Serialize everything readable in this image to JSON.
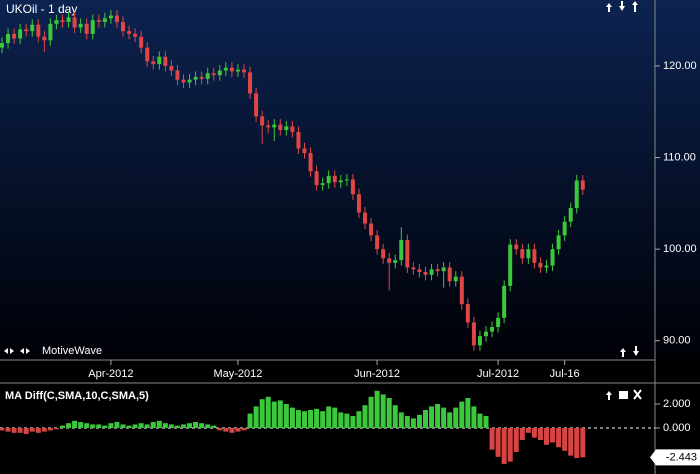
{
  "chart_data": [
    {
      "type": "candlestick",
      "title": "UKOil - 1 day",
      "watermark": "MotiveWave",
      "up_color": "#3cc83c",
      "down_color": "#e04646",
      "categories": [
        null,
        null,
        null,
        null,
        null,
        null,
        null,
        null,
        null,
        null,
        null,
        null,
        null,
        null,
        null,
        null,
        null,
        null,
        "Apr-2012",
        null,
        null,
        null,
        null,
        null,
        null,
        null,
        null,
        null,
        null,
        null,
        null,
        null,
        null,
        null,
        null,
        null,
        null,
        null,
        null,
        "May-2012",
        null,
        null,
        null,
        null,
        null,
        null,
        null,
        null,
        null,
        null,
        null,
        null,
        null,
        null,
        null,
        null,
        null,
        null,
        null,
        null,
        null,
        null,
        "Jun-2012",
        null,
        null,
        null,
        null,
        null,
        null,
        null,
        null,
        null,
        null,
        null,
        null,
        null,
        null,
        null,
        null,
        null,
        null,
        null,
        "Jul-2012",
        null,
        null,
        null,
        null,
        null,
        null,
        null,
        null,
        null,
        null,
        "Jul-16",
        null,
        null,
        null
      ],
      "open": [
        122.0,
        122.5,
        123.5,
        123,
        124,
        123.8,
        124.5,
        123.2,
        122.8,
        124.6,
        125,
        124.8,
        125.3,
        124.2,
        124.6,
        123.5,
        125,
        124.8,
        125.2,
        125.5,
        124.8,
        123.8,
        123.5,
        123.2,
        122,
        120.5,
        120.2,
        121,
        120,
        119.5,
        118.5,
        118.2,
        118.5,
        118.8,
        118.6,
        119.2,
        119,
        119.5,
        119.8,
        119.4,
        119.6,
        119.3,
        117,
        114.5,
        113.5,
        113.3,
        113.6,
        113,
        113.4,
        112.8,
        111,
        110.5,
        108.5,
        107,
        107.2,
        108,
        107.3,
        107.5,
        107.6,
        106,
        104,
        102.8,
        101.5,
        100,
        99,
        98.5,
        98.8,
        101,
        98,
        97.8,
        97.5,
        97.2,
        97.8,
        97.6,
        98,
        96.5,
        97,
        94,
        92,
        89.5,
        90.5,
        91,
        91.5,
        92.5,
        96,
        100.5,
        100,
        99,
        100,
        98.5,
        98,
        98.2,
        100,
        101.5,
        103,
        104.5,
        107.5
      ],
      "high": [
        123.1,
        124.1,
        124.1,
        124.6,
        124.6,
        125.1,
        125.1,
        123.8,
        125.2,
        125.6,
        125.6,
        125.9,
        125.9,
        125.2,
        125.2,
        125.6,
        125.6,
        125.8,
        126.1,
        126.1,
        125.4,
        124.4,
        124.1,
        123.8,
        122.6,
        121.1,
        121.6,
        121.6,
        120.6,
        120.1,
        119.1,
        119.1,
        119.4,
        119.4,
        119.8,
        119.8,
        120.1,
        120.4,
        120.4,
        120.2,
        120.2,
        119.9,
        117.6,
        115.1,
        114.1,
        114.2,
        114.2,
        114,
        114,
        113.4,
        111.6,
        111.1,
        109.1,
        107.8,
        108.6,
        108.6,
        108.1,
        108.2,
        108.2,
        106.6,
        104.6,
        103.4,
        102.1,
        100.6,
        99.6,
        99.4,
        102.4,
        101.6,
        98.6,
        98.4,
        98.1,
        98.4,
        98.4,
        98.6,
        98.6,
        97.6,
        97.6,
        94.6,
        92.6,
        91.1,
        91.6,
        92.1,
        93.1,
        96.6,
        101.1,
        101.1,
        100.6,
        100.6,
        100.6,
        99.1,
        98.8,
        100.6,
        102.1,
        103.6,
        105.1,
        108.1,
        108.1
      ],
      "low": [
        121.4,
        121.9,
        122.4,
        122.4,
        123.2,
        123.2,
        122.6,
        121.5,
        122.2,
        124,
        124.2,
        124.2,
        123.6,
        123.6,
        122.9,
        122.9,
        124.2,
        124.2,
        124.6,
        124.2,
        123.2,
        122.9,
        122.6,
        121.4,
        119.9,
        119.6,
        119.6,
        119.4,
        118.9,
        117.9,
        117.6,
        117.6,
        117.9,
        118,
        118,
        118.4,
        118.4,
        118.9,
        118.8,
        118.8,
        118.7,
        116.4,
        113.9,
        111.5,
        112.7,
        111.8,
        112.4,
        112.4,
        112.2,
        110.4,
        109.9,
        107.9,
        106.4,
        106.4,
        106.6,
        106.7,
        106.7,
        106.9,
        105.4,
        103.4,
        102.2,
        100.9,
        99.4,
        98.4,
        95.5,
        97.9,
        98.2,
        97.4,
        97.2,
        96.9,
        96.6,
        96.6,
        97,
        95.8,
        95.9,
        95.9,
        93.4,
        91.4,
        88.9,
        88.9,
        89.9,
        90.4,
        90.9,
        91.9,
        95.4,
        99.4,
        98.4,
        98.4,
        97.9,
        97.4,
        97.4,
        97.6,
        99.4,
        100.9,
        102.4,
        103.9,
        105.9
      ],
      "close": [
        122.5,
        123.5,
        123,
        124,
        123.8,
        124.5,
        123.2,
        122.8,
        124.6,
        125,
        124.8,
        125.3,
        124.2,
        124.6,
        123.5,
        125,
        124.8,
        125.2,
        125.5,
        124.8,
        123.8,
        123.5,
        123.2,
        122,
        120.5,
        120.2,
        121,
        120,
        119.5,
        118.5,
        118.2,
        118.5,
        118.8,
        118.6,
        119.2,
        119,
        119.5,
        119.8,
        119.4,
        119.6,
        119.3,
        117,
        114.5,
        113.5,
        113.3,
        113.6,
        113,
        113.4,
        112.8,
        111,
        110.5,
        108.5,
        107,
        107.2,
        108,
        107.3,
        107.5,
        107.6,
        106,
        104,
        102.8,
        101.5,
        100,
        99,
        98.5,
        98.8,
        101,
        98,
        97.8,
        97.5,
        97.2,
        97.8,
        97.6,
        98,
        96.5,
        97,
        94,
        92,
        89.5,
        90.5,
        91,
        91.5,
        92.5,
        96,
        100.5,
        100,
        99,
        100,
        98.5,
        98,
        98.2,
        100,
        101.5,
        103,
        104.5,
        107.5,
        106.5
      ],
      "ylim": [
        87.9,
        127.2
      ],
      "yticks": [
        {
          "value": 90,
          "label": "90.00"
        },
        {
          "value": 100,
          "label": "100.00"
        },
        {
          "value": 110,
          "label": "110.00"
        },
        {
          "value": 120,
          "label": "120.00"
        }
      ]
    },
    {
      "type": "bar",
      "title": "MA Diff(C,SMA,10,C,SMA,5)",
      "up_color": "#3cc83c",
      "down_color": "#d84444",
      "values": [
        -0.2,
        -0.3,
        -0.4,
        -0.4,
        -0.5,
        -0.3,
        -0.4,
        -0.3,
        -0.2,
        -0.1,
        0.2,
        0.4,
        0.6,
        0.5,
        0.4,
        0.3,
        0.3,
        0.2,
        0.4,
        0.5,
        0.3,
        0.2,
        0.3,
        0.4,
        0.3,
        0.5,
        0.6,
        0.4,
        0.3,
        0.2,
        0.3,
        0.4,
        0.5,
        0.4,
        0.3,
        0.2,
        -0.2,
        -0.3,
        -0.4,
        -0.3,
        -0.2,
        1.2,
        1.8,
        2.4,
        2.6,
        2.2,
        2.3,
        2.0,
        1.7,
        1.5,
        1.4,
        1.5,
        1.6,
        1.4,
        1.8,
        1.7,
        1.3,
        1.2,
        1.0,
        1.4,
        1.9,
        2.6,
        3.1,
        2.8,
        2.5,
        1.9,
        1.3,
        1.0,
        0.8,
        1.1,
        1.5,
        1.8,
        2.0,
        1.7,
        1.3,
        1.7,
        2.2,
        2.5,
        1.8,
        1.2,
        1.0,
        -1.8,
        -2.4,
        -3.0,
        -2.8,
        -2.0,
        -1.0,
        -0.4,
        -0.8,
        -1.0,
        -1.4,
        -1.2,
        -1.6,
        -1.9,
        -2.3,
        -2.5,
        -2.443
      ],
      "current": {
        "value": -2.443,
        "label": "-2.443"
      },
      "ylim": [
        -3.83,
        3.5
      ],
      "yticks": [
        {
          "value": 0,
          "label": "0.000"
        },
        {
          "value": 2,
          "label": "2.000"
        }
      ]
    }
  ]
}
